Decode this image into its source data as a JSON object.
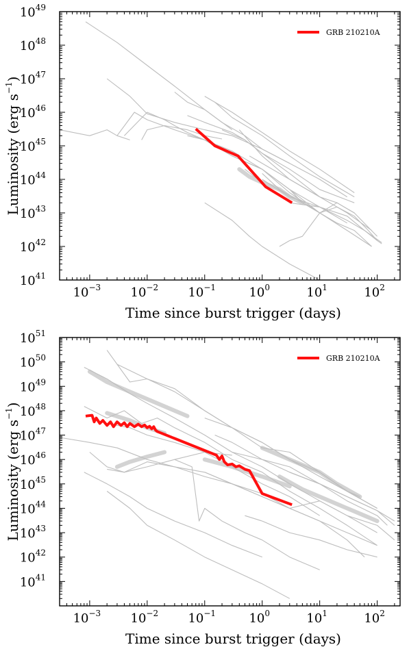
{
  "colors": {
    "highlight": "#ff1010",
    "background_curves": "#bdbdbd",
    "dense_curves": "#d3d3d3",
    "axes": "#000000"
  },
  "chart_data": [
    {
      "type": "line",
      "title": "",
      "xlabel": "Time since burst trigger (days)",
      "ylabel": "Luminosity (erg s$^{-1}$)",
      "xscale": "log",
      "yscale": "log",
      "xlim": [
        0.0003,
        250
      ],
      "ylim": [
        1e+41,
        1e+49
      ],
      "x_tick_exponents": [
        -3,
        -2,
        -1,
        0,
        1,
        2
      ],
      "y_tick_exponents": [
        41,
        42,
        43,
        44,
        45,
        46,
        47,
        48,
        49
      ],
      "grid": false,
      "legend_position": "top-right",
      "highlight_series": {
        "name": "GRB 210210A",
        "x": [
          0.07,
          0.15,
          0.38,
          1.15,
          3.3
        ],
        "y": [
          3.2e+45,
          1e+45,
          5e+44,
          6e+43,
          2e+43
        ]
      },
      "background_series": [
        {
          "x": [
            0.00085,
            0.003,
            0.01,
            0.03,
            0.1,
            0.3
          ],
          "y": [
            5e+48,
            1.2e+48,
            2.5e+47,
            6e+46,
            1.2e+46,
            3e+45
          ]
        },
        {
          "x": [
            0.0003,
            0.001,
            0.002,
            0.003,
            0.005
          ],
          "y": [
            3e+45,
            2e+45,
            3e+45,
            2e+45,
            1.5e+45
          ]
        },
        {
          "x": [
            0.002,
            0.005,
            0.01,
            0.03,
            0.1,
            0.3,
            1,
            3,
            10,
            30
          ],
          "y": [
            1e+47,
            3e+46,
            9e+45,
            5e+45,
            3e+45,
            2e+45,
            8e+44,
            3e+44,
            1e+44,
            3e+43
          ]
        },
        {
          "x": [
            0.003,
            0.006,
            0.01,
            0.03,
            0.1,
            0.3,
            1,
            3,
            10
          ],
          "y": [
            2e+45,
            1e+46,
            6e+45,
            3e+45,
            1.5e+45,
            5e+44,
            2e+44,
            5e+43,
            1e+43
          ]
        },
        {
          "x": [
            0.004,
            0.01,
            0.02,
            0.03,
            0.05,
            0.1,
            0.3,
            1,
            3,
            10,
            30
          ],
          "y": [
            2e+45,
            1e+46,
            6e+45,
            4e+45,
            2.5e+45,
            1.5e+45,
            7e+44,
            2e+44,
            5e+43,
            1.5e+43,
            5e+42
          ]
        },
        {
          "x": [
            0.008,
            0.01,
            0.02,
            0.05,
            0.1,
            0.2
          ],
          "y": [
            1.5e+45,
            3e+45,
            4e+45,
            3e+45,
            2e+45,
            1.6e+45
          ]
        },
        {
          "x": [
            0.03,
            0.05,
            0.1,
            0.2,
            0.5,
            1,
            3
          ],
          "y": [
            4e+46,
            2e+46,
            1.2e+46,
            5e+45,
            2e+45,
            8e+44,
            3e+44
          ]
        },
        {
          "x": [
            0.1,
            0.3,
            1,
            3,
            10,
            40
          ],
          "y": [
            3e+46,
            1e+46,
            2.5e+45,
            7e+44,
            2e+44,
            4e+43
          ]
        },
        {
          "x": [
            0.15,
            0.3,
            1,
            3,
            10,
            40
          ],
          "y": [
            2e+46,
            7e+45,
            2e+45,
            5e+44,
            1.2e+44,
            3e+43
          ]
        },
        {
          "x": [
            0.05,
            0.1,
            0.3,
            0.5,
            1,
            3,
            10
          ],
          "y": [
            8e+45,
            5e+45,
            2.5e+45,
            1.5e+45,
            6e+44,
            1.5e+44,
            3e+43
          ]
        },
        {
          "x": [
            0.2,
            0.5,
            1,
            3,
            10,
            40
          ],
          "y": [
            3e+45,
            1.5e+45,
            6e+44,
            2e+44,
            5e+43,
            2e+43
          ]
        },
        {
          "x": [
            0.05,
            0.1,
            0.3,
            1,
            3,
            10,
            30,
            80
          ],
          "y": [
            2e+45,
            1.5e+45,
            5e+44,
            2e+44,
            4e+43,
            1e+43,
            3e+42,
            1e+42
          ]
        },
        {
          "x": [
            1,
            2,
            5,
            10,
            20,
            40,
            80
          ],
          "y": [
            1.5e+44,
            5e+43,
            2e+43,
            1e+43,
            5e+42,
            3e+42,
            1e+42
          ]
        },
        {
          "x": [
            3,
            5,
            10,
            20,
            40,
            70,
            100,
            120
          ],
          "y": [
            5e+43,
            2e+43,
            1e+43,
            1.5e+43,
            8e+42,
            3e+42,
            1.5e+42,
            1.2e+42
          ]
        },
        {
          "x": [
            0.1,
            0.3,
            0.6,
            1,
            3,
            10
          ],
          "y": [
            2e+43,
            6e+42,
            2e+42,
            1e+42,
            3e+41,
            1e+41
          ]
        },
        {
          "x": [
            2,
            3,
            5,
            10,
            20,
            40
          ],
          "y": [
            1e+42,
            1.5e+42,
            2e+42,
            1e+43,
            2e+43,
            1e+43
          ]
        },
        {
          "x": [
            1,
            3,
            10,
            30,
            60,
            100
          ],
          "y": [
            1e+44,
            3e+43,
            1.5e+43,
            8e+42,
            3e+42,
            1.5e+42
          ]
        },
        {
          "x": [
            0.5,
            1,
            3,
            10,
            30,
            60,
            120
          ],
          "y": [
            2e+44,
            8e+43,
            2e+43,
            1.5e+43,
            6e+42,
            3e+42,
            1.3e+42
          ]
        },
        {
          "x": [
            0.4,
            0.7,
            1,
            3,
            10,
            30,
            80
          ],
          "y": [
            3e+45,
            1e+45,
            5e+44,
            1e+44,
            3e+43,
            1e+43,
            3e+42
          ]
        },
        {
          "x": [
            0.6,
            1,
            3,
            10,
            20,
            40,
            100
          ],
          "y": [
            5e+44,
            3e+44,
            1e+44,
            3e+43,
            2e+43,
            1e+43,
            2e+42
          ]
        }
      ],
      "dense_series": [
        {
          "x": [
            0.4,
            0.6,
            1,
            2,
            3,
            5
          ],
          "y": [
            2e+44,
            1.2e+44,
            8e+43,
            5e+43,
            3e+43,
            2e+43
          ]
        }
      ]
    },
    {
      "type": "line",
      "title": "",
      "xlabel": "Time since burst trigger (days)",
      "ylabel": "Luminosity (erg s$^{-1}$)",
      "xscale": "log",
      "yscale": "log",
      "xlim": [
        0.0003,
        250
      ],
      "ylim": [
        1e+40,
        1e+51
      ],
      "x_tick_exponents": [
        -3,
        -2,
        -1,
        0,
        1,
        2
      ],
      "y_tick_exponents": [
        41,
        42,
        43,
        44,
        45,
        46,
        47,
        48,
        49,
        50,
        51
      ],
      "grid": false,
      "legend_position": "top-right",
      "highlight_series": {
        "name": "GRB 210210A",
        "x": [
          0.00085,
          0.0011,
          0.0012,
          0.0013,
          0.0015,
          0.0017,
          0.002,
          0.0023,
          0.0026,
          0.003,
          0.0035,
          0.004,
          0.0045,
          0.005,
          0.006,
          0.007,
          0.008,
          0.009,
          0.01,
          0.011,
          0.012,
          0.013,
          0.014,
          0.015,
          0.16,
          0.18,
          0.2,
          0.22,
          0.25,
          0.3,
          0.35,
          0.4,
          0.5,
          0.6,
          1.0,
          3.3
        ],
        "y": [
          6e+47,
          6.5e+47,
          3.5e+47,
          5e+47,
          3e+47,
          4e+47,
          2.5e+47,
          3.5e+47,
          2.2e+47,
          3.5e+47,
          2.5e+47,
          3.2e+47,
          2.2e+47,
          3e+47,
          2.2e+47,
          2.8e+47,
          2.2e+47,
          2.6e+47,
          2e+47,
          2.3e+47,
          1.8e+47,
          2.2e+47,
          1.6e+47,
          1.4e+47,
          1.5e+46,
          1e+46,
          1.4e+46,
          8e+45,
          6e+45,
          6.5e+45,
          5e+45,
          5.5e+45,
          4e+45,
          3.5e+45,
          4e+44,
          1.4e+44
        ]
      },
      "background_series": [
        {
          "x": [
            0.0008,
            0.002,
            0.005,
            0.01,
            0.03,
            0.1,
            0.3,
            1,
            3,
            10,
            30,
            100
          ],
          "y": [
            6e+49,
            2e+49,
            5e+48,
            2e+48,
            5e+47,
            1e+47,
            2e+46,
            5e+45,
            1e+45,
            2e+44,
            5e+43,
            1e+43
          ]
        },
        {
          "x": [
            0.002,
            0.005,
            0.01,
            0.03,
            0.1,
            0.3,
            1,
            3,
            10,
            30,
            100
          ],
          "y": [
            3e+50,
            1.5e+49,
            2e+49,
            8e+48,
            1e+48,
            2e+47,
            5e+46,
            1e+46,
            3e+45,
            5e+44,
            1e+44
          ]
        },
        {
          "x": [
            0.003,
            0.01,
            0.03,
            0.1,
            0.3,
            1,
            3,
            10,
            30,
            50
          ],
          "y": [
            8e+49,
            2e+49,
            6e+48,
            1e+48,
            2e+47,
            5e+46,
            1e+46,
            2e+45,
            5e+44,
            3e+44
          ]
        },
        {
          "x": [
            0.0008,
            0.002,
            0.004,
            0.008,
            0.015,
            0.03,
            0.1,
            0.3,
            1,
            3,
            10,
            30,
            100
          ],
          "y": [
            1.5e+48,
            5e+47,
            1e+48,
            3e+47,
            5e+47,
            2e+47,
            5e+46,
            1e+46,
            3e+45,
            5e+44,
            1e+44,
            2e+43,
            3e+42
          ]
        },
        {
          "x": [
            0.002,
            0.005,
            0.01,
            0.03,
            0.1,
            0.3,
            1,
            3,
            10
          ],
          "y": [
            3e+47,
            2e+47,
            1e+47,
            5e+46,
            2e+46,
            5e+45,
            1e+45,
            3e+44,
            5e+43
          ]
        },
        {
          "x": [
            0.0003,
            0.001,
            0.003,
            0.01,
            0.03,
            0.1,
            0.3,
            1,
            3,
            10,
            30,
            60
          ],
          "y": [
            8e+46,
            5e+46,
            3e+46,
            1e+46,
            5e+45,
            2e+45,
            1e+45,
            4e+44,
            1e+44,
            3e+43,
            5e+42,
            1e+42
          ]
        },
        {
          "x": [
            0.001,
            0.002,
            0.004,
            0.01,
            0.03,
            0.1,
            0.3
          ],
          "y": [
            2e+46,
            5e+45,
            3e+45,
            5e+45,
            1e+46,
            2e+46,
            1.5e+46
          ]
        },
        {
          "x": [
            0.002,
            0.004,
            0.01,
            0.03,
            0.1,
            0.3,
            1,
            3,
            10,
            30,
            100
          ],
          "y": [
            4e+45,
            3e+45,
            8e+45,
            5e+45,
            3e+45,
            1e+45,
            3e+44,
            1e+44,
            3e+43,
            1e+43,
            3e+42
          ]
        },
        {
          "x": [
            0.0008,
            0.002,
            0.005,
            0.01,
            0.03,
            0.1,
            0.3,
            1
          ],
          "y": [
            3e+45,
            1e+45,
            3e+44,
            1e+44,
            3e+43,
            1e+43,
            3e+42,
            1e+42
          ]
        },
        {
          "x": [
            0.002,
            0.005,
            0.01,
            0.03,
            0.1,
            0.3,
            1,
            3
          ],
          "y": [
            5e+44,
            1e+44,
            2e+43,
            5e+42,
            1e+42,
            3e+41,
            8e+40,
            2e+40
          ]
        },
        {
          "x": [
            0.03,
            0.06,
            0.08,
            0.1,
            0.2,
            0.5,
            1,
            3,
            10
          ],
          "y": [
            1e+46,
            5e+45,
            3e+43,
            1e+44,
            3e+43,
            1e+43,
            5e+42,
            1e+42,
            3e+41
          ]
        },
        {
          "x": [
            0.1,
            0.3,
            1,
            3,
            10,
            30,
            100,
            200
          ],
          "y": [
            3e+45,
            1e+45,
            3e+44,
            1e+44,
            2e+44,
            5e+43,
            2e+43,
            5e+42
          ]
        },
        {
          "x": [
            0.3,
            1,
            3,
            10,
            30,
            100,
            200
          ],
          "y": [
            2e+46,
            1e+46,
            3e+45,
            1e+45,
            3e+44,
            8e+43,
            2e+43
          ]
        },
        {
          "x": [
            0.15,
            0.3,
            1,
            3,
            10,
            30,
            100,
            150
          ],
          "y": [
            1e+47,
            5e+46,
            1e+46,
            5e+45,
            1e+45,
            2e+44,
            5e+43,
            2e+43
          ]
        },
        {
          "x": [
            0.1,
            0.3,
            1,
            3,
            10,
            30,
            100
          ],
          "y": [
            5e+47,
            2e+47,
            3e+46,
            2e+46,
            3e+45,
            5e+44,
            1e+44
          ]
        },
        {
          "x": [
            3,
            10,
            30,
            100,
            200
          ],
          "y": [
            3e+45,
            1e+45,
            3e+44,
            8e+43,
            3e+43
          ]
        },
        {
          "x": [
            0.5,
            1,
            3,
            10,
            30,
            100
          ],
          "y": [
            5e+43,
            3e+43,
            1e+43,
            5e+42,
            2e+42,
            1e+42
          ]
        }
      ],
      "dense_series": [
        {
          "x": [
            0.001,
            0.002,
            0.005,
            0.01,
            0.03,
            0.05
          ],
          "y": [
            4e+49,
            1.5e+49,
            6e+48,
            3e+48,
            1e+48,
            6e+47
          ]
        },
        {
          "x": [
            0.002,
            0.005,
            0.01,
            0.02
          ],
          "y": [
            8e+47,
            4e+47,
            2e+47,
            1.2e+47
          ]
        },
        {
          "x": [
            0.003,
            0.005,
            0.01,
            0.02
          ],
          "y": [
            5e+45,
            8e+45,
            1.3e+46,
            2e+46
          ]
        },
        {
          "x": [
            0.1,
            0.3,
            1,
            3
          ],
          "y": [
            1e+46,
            5e+45,
            2e+45,
            8e+44
          ]
        },
        {
          "x": [
            1,
            3,
            10,
            20,
            50
          ],
          "y": [
            3e+46,
            1e+46,
            3e+45,
            1e+45,
            3e+44
          ]
        },
        {
          "x": [
            2,
            5,
            10,
            30,
            60,
            100
          ],
          "y": [
            2e+45,
            6e+44,
            3e+44,
            1e+44,
            5e+43,
            3e+43
          ]
        }
      ]
    }
  ]
}
